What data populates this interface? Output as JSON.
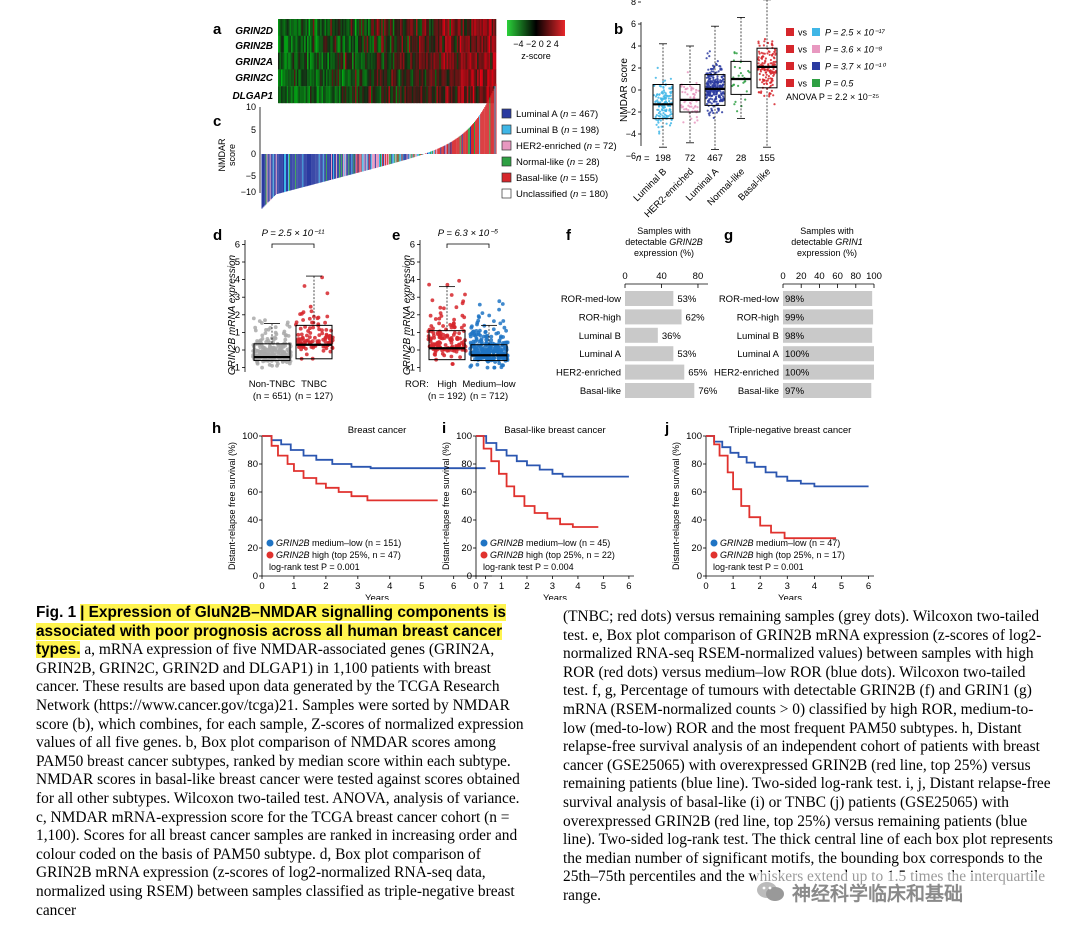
{
  "figure": {
    "panel_letters": [
      "a",
      "b",
      "c",
      "d",
      "e",
      "f",
      "g",
      "h",
      "i",
      "j"
    ],
    "genes": [
      "GRIN2D",
      "GRIN2B",
      "GRIN2A",
      "GRIN2C",
      "DLGAP1"
    ],
    "zscore": {
      "ticks": "−4 −2 0 2 4",
      "label": "z-score"
    },
    "panel_c": {
      "ylabel_1": "NMDAR",
      "ylabel_2": "score",
      "ticks": [
        "10",
        "5",
        "0",
        "−5",
        "−10"
      ]
    },
    "legend_subtypes": [
      {
        "label": "Luminal A",
        "n": "467",
        "color": "#2a3aa0"
      },
      {
        "label": "Luminal B",
        "n": "198",
        "color": "#3fb6e6"
      },
      {
        "label": "HER2-enriched",
        "n": "72",
        "color": "#e898c0"
      },
      {
        "label": "Normal-like",
        "n": "28",
        "color": "#2ea043"
      },
      {
        "label": "Basal-like",
        "n": "155",
        "color": "#d6262b"
      },
      {
        "label": "Unclassified",
        "n": "180",
        "color": "#ffffff"
      }
    ],
    "panel_b": {
      "ylabel": "NMDAR score",
      "yticks": [
        "8",
        "6",
        "4",
        "2",
        "0",
        "−2",
        "−4",
        "−6"
      ],
      "n_prefix": "n =",
      "n_values": [
        "198",
        "72",
        "467",
        "28",
        "155"
      ],
      "categories": [
        "Luminal B",
        "HER2-enriched",
        "Luminal A",
        "Normal-like",
        "Basal-like"
      ],
      "tests": [
        {
          "left": "#d6262b",
          "vs": "vs",
          "right": "#3fb6e6",
          "p": "P = 2.5 × 10⁻¹⁷"
        },
        {
          "left": "#d6262b",
          "vs": "vs",
          "right": "#e898c0",
          "p": "P = 3.6 × 10⁻⁸"
        },
        {
          "left": "#d6262b",
          "vs": "vs",
          "right": "#2a3aa0",
          "p": "P = 3.7 × 10⁻¹⁰"
        },
        {
          "left": "#d6262b",
          "vs": "vs",
          "right": "#2ea043",
          "p": "P = 0.5"
        }
      ],
      "anova": "ANOVA P = 2.2 × 10⁻²⁵"
    },
    "panel_d": {
      "ylabel": "GRIN2B mRNA expression",
      "pvalue": "P = 2.5 × 10⁻¹¹",
      "yticks": [
        "6",
        "5",
        "4",
        "3",
        "2",
        "1",
        "0",
        "−1"
      ],
      "groups": [
        {
          "label": "Non-TNBC",
          "n": "(n = 651)"
        },
        {
          "label": "TNBC",
          "n": "(n = 127)"
        }
      ]
    },
    "panel_e": {
      "ylabel": "GRIN2B mRNA expression",
      "pvalue": "P = 6.3 × 10⁻⁵",
      "yticks": [
        "6",
        "5",
        "4",
        "3",
        "2",
        "1",
        "0",
        "−1"
      ],
      "ror_label": "ROR:",
      "groups": [
        {
          "label": "High",
          "n": "(n = 192)"
        },
        {
          "label": "Medium–low",
          "n": "(n = 712)"
        }
      ]
    },
    "panel_f": {
      "title": [
        "Samples with",
        "detectable GRIN2B",
        "expression (%)"
      ],
      "ticks": [
        "0",
        "40",
        "80"
      ],
      "rows": [
        {
          "label": "ROR-med-low",
          "value": 53,
          "text": "53%"
        },
        {
          "label": "ROR-high",
          "value": 62,
          "text": "62%"
        },
        {
          "label": "Luminal B",
          "value": 36,
          "text": "36%"
        },
        {
          "label": "Luminal A",
          "value": 53,
          "text": "53%"
        },
        {
          "label": "HER2-enriched",
          "value": 65,
          "text": "65%"
        },
        {
          "label": "Basal-like",
          "value": 76,
          "text": "76%"
        }
      ]
    },
    "panel_g": {
      "title": [
        "Samples with",
        "detectable GRIN1",
        "expression (%)"
      ],
      "ticks": [
        "0",
        "20",
        "40",
        "60",
        "80",
        "100"
      ],
      "rows": [
        {
          "label": "ROR-med-low",
          "value": 98,
          "text": "98%"
        },
        {
          "label": "ROR-high",
          "value": 99,
          "text": "99%"
        },
        {
          "label": "Luminal B",
          "value": 98,
          "text": "98%"
        },
        {
          "label": "Luminal A",
          "value": 100,
          "text": "100%"
        },
        {
          "label": "HER2-enriched",
          "value": 100,
          "text": "100%"
        },
        {
          "label": "Basal-like",
          "value": 97,
          "text": "97%"
        }
      ]
    },
    "survival": {
      "ylabel": "Distant-relapse free survival (%)",
      "yticks": [
        "100",
        "80",
        "60",
        "40",
        "20",
        "0"
      ],
      "xlabel": "Years",
      "panels": [
        {
          "letter": "h",
          "title": "Breast cancer",
          "xticks": [
            "0",
            "1",
            "2",
            "3",
            "4",
            "5",
            "6",
            "7"
          ],
          "legend_blue": "GRIN2B medium–low (n = 151)",
          "legend_red": "GRIN2B high (top 25%, n = 47)",
          "logrank": "log-rank test P = 0.001"
        },
        {
          "letter": "i",
          "title": "Basal-like breast cancer",
          "xticks": [
            "0",
            "1",
            "2",
            "3",
            "4",
            "5",
            "6"
          ],
          "legend_blue": "GRIN2B medium–low (n = 45)",
          "legend_red": "GRIN2B high (top 25%, n = 22)",
          "logrank": "log-rank test P = 0.004"
        },
        {
          "letter": "j",
          "title": "Triple-negative breast cancer",
          "xticks": [
            "0",
            "1",
            "2",
            "3",
            "4",
            "5",
            "6"
          ],
          "legend_blue": "GRIN2B medium–low (n = 47)",
          "legend_red": "GRIN2B high (top 25%, n = 17)",
          "logrank": "log-rank test P = 0.001"
        }
      ]
    }
  },
  "caption": {
    "fig_label": "Fig. 1",
    "headline": "Expression of GluN2B–NMDAR signalling components is associated with poor prognosis across all human breast cancer types.",
    "left_text": "a, mRNA expression of five NMDAR-associated genes (GRIN2A, GRIN2B, GRIN2C, GRIN2D and DLGAP1) in 1,100 patients with breast cancer. These results are based upon data generated by the TCGA Research Network (https://www.cancer.gov/tcga)21. Samples were sorted by NMDAR score (b), which combines, for each sample, Z-scores of normalized expression values of all five genes. b, Box plot comparison of NMDAR scores among PAM50 breast cancer subtypes, ranked by median score within each subtype. NMDAR scores in basal-like breast cancer were tested against scores obtained for all other subtypes. Wilcoxon two-tailed test. ANOVA, analysis of variance. c, NMDAR mRNA-expression score for the TCGA breast cancer cohort (n = 1,100). Scores for all breast cancer samples are ranked in increasing order and colour coded on the basis of PAM50 subtype. d, Box plot comparison of GRIN2B mRNA expression (z-scores of log2-normalized RNA-seq data, normalized using RSEM) between samples classified as triple-negative breast cancer",
    "right_text": "(TNBC; red dots) versus remaining samples (grey dots). Wilcoxon two-tailed test. e, Box plot comparison of GRIN2B mRNA expression (z-scores of log2-normalized RNA-seq RSEM-normalized values) between samples with high ROR (red dots) versus medium–low ROR (blue dots). Wilcoxon two-tailed test. f, g, Percentage of tumours with detectable GRIN2B (f) and GRIN1 (g) mRNA (RSEM-normalized counts > 0) classified by high ROR, medium-to-low (med-to-low) ROR and the most frequent PAM50 subtypes. h, Distant relapse-free survival analysis of an independent cohort of patients with breast cancer (GSE25065) with overexpressed GRIN2B (red line, top 25%) versus remaining patients (blue line). Two-sided log-rank test. i, j, Distant relapse-free survival analysis of basal-like (i) or TNBC (j) patients (GSE25065) with overexpressed GRIN2B (red line, top 25%) versus remaining patients (blue line). Two-sided log-rank test. The thick central line of each box plot represents the median number of significant motifs, the bounding box corresponds to the 25th–75th percentiles and the whiskers extend up to 1.5 times the interquartile range.",
    "watermark": "神经科学临床和基础"
  }
}
